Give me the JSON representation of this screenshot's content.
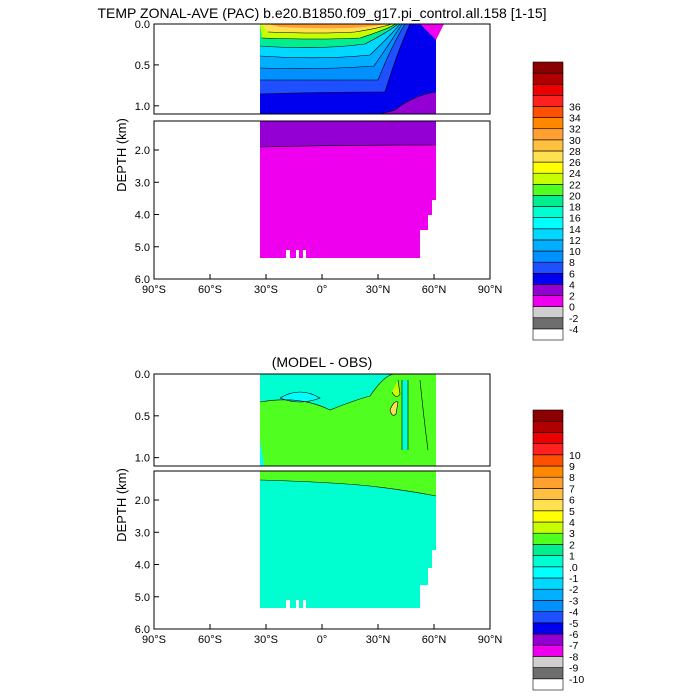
{
  "page": {
    "title": "TEMP ZONAL-AVE (PAC) b.e20.B1850.f09_g17.pi_control.all.158 [1-15]",
    "subtitle": "(MODEL - OBS)"
  },
  "colors": {
    "top_scale": [
      "#ffffff",
      "#6e6e6e",
      "#cfcfcf",
      "#ee00ee",
      "#9400d3",
      "#0000ee",
      "#1e50ff",
      "#0090ff",
      "#00b0ff",
      "#00d8ff",
      "#00ffff",
      "#00ffd0",
      "#00ee90",
      "#50ff20",
      "#c8ff00",
      "#ffff00",
      "#ffe050",
      "#ffc040",
      "#ffa030",
      "#ff8800",
      "#ff5000",
      "#ff2020",
      "#ee0000",
      "#b00000",
      "#8b0000"
    ],
    "diff_scale": [
      "#ffffff",
      "#6e6e6e",
      "#cfcfcf",
      "#ee00ee",
      "#9400d3",
      "#0000ee",
      "#1e50ff",
      "#0090ff",
      "#00b0ff",
      "#00d8ff",
      "#00ffff",
      "#00ffd0",
      "#00ee90",
      "#50ff20",
      "#c8ff00",
      "#ffff00",
      "#ffe050",
      "#ffc040",
      "#ffa030",
      "#ff8800",
      "#ff5000",
      "#ff2020",
      "#ee0000",
      "#b00000",
      "#8b0000"
    ]
  },
  "chart_data": [
    {
      "type": "heatmap",
      "title": "TEMP ZONAL-AVE (PAC) b.e20.B1850.f09_g17.pi_control.all.158 [1-15]",
      "xlabel": "",
      "ylabel": "DEPTH (km)",
      "x_ticks": [
        "90°S",
        "60°S",
        "30°S",
        "0°",
        "30°N",
        "60°N",
        "90°N"
      ],
      "xlim": [
        -90,
        90
      ],
      "y_ticks_upper": [
        "0.0",
        "0.5",
        "1.0"
      ],
      "y_ticks_lower": [
        "2.0",
        "3.0",
        "4.0",
        "5.0",
        "6.0"
      ],
      "ylim_upper": [
        0,
        1.1
      ],
      "ylim_lower": [
        1.1,
        6.0
      ],
      "colorbar_labels": [
        "-4",
        "-2",
        "0",
        "2",
        "4",
        "6",
        "8",
        "10",
        "12",
        "14",
        "16",
        "18",
        "20",
        "22",
        "24",
        "26",
        "28",
        "30",
        "32",
        "34",
        "36"
      ],
      "data_extent": {
        "lat": [
          -33,
          60
        ],
        "max_depth": 5.35
      },
      "bands": [
        {
          "value": 0,
          "desc": "deep water below ~1.8 km"
        },
        {
          "value": 2,
          "desc": "1.1-1.8 km and high latitude north"
        },
        {
          "value": 4,
          "desc": "~0.6-1.1 km"
        },
        {
          "value": 8,
          "desc": "~0.3-0.6 km"
        },
        {
          "value": 16,
          "desc": "~0.1-0.3 km"
        },
        {
          "value": 28,
          "desc": "surface tropics"
        }
      ]
    },
    {
      "type": "heatmap",
      "title": "(MODEL - OBS)",
      "xlabel": "",
      "ylabel": "DEPTH (km)",
      "x_ticks": [
        "90°S",
        "60°S",
        "30°S",
        "0°",
        "30°N",
        "60°N",
        "90°N"
      ],
      "xlim": [
        -90,
        90
      ],
      "y_ticks_upper": [
        "0.0",
        "0.5",
        "1.0"
      ],
      "y_ticks_lower": [
        "2.0",
        "3.0",
        "4.0",
        "5.0",
        "6.0"
      ],
      "ylim_upper": [
        0,
        1.1
      ],
      "ylim_lower": [
        1.1,
        6.0
      ],
      "colorbar_labels": [
        "-10",
        "-9",
        "-8",
        "-7",
        "-6",
        "-5",
        "-4",
        "-3",
        "-2",
        "-1",
        ".0",
        "1",
        "2",
        "3",
        "4",
        "5",
        "6",
        "7",
        "8",
        "9",
        "10"
      ],
      "data_extent": {
        "lat": [
          -33,
          60
        ],
        "max_depth": 5.35
      },
      "bands": [
        {
          "value": 0,
          "desc": "most of domain near zero"
        },
        {
          "value": 1,
          "desc": "~0.3-2.0 km warm bias"
        },
        {
          "value": 2,
          "desc": "isolated patches near 30N-60N"
        },
        {
          "value": 3,
          "desc": "small patch ~45N, 0.4 km"
        }
      ]
    }
  ]
}
